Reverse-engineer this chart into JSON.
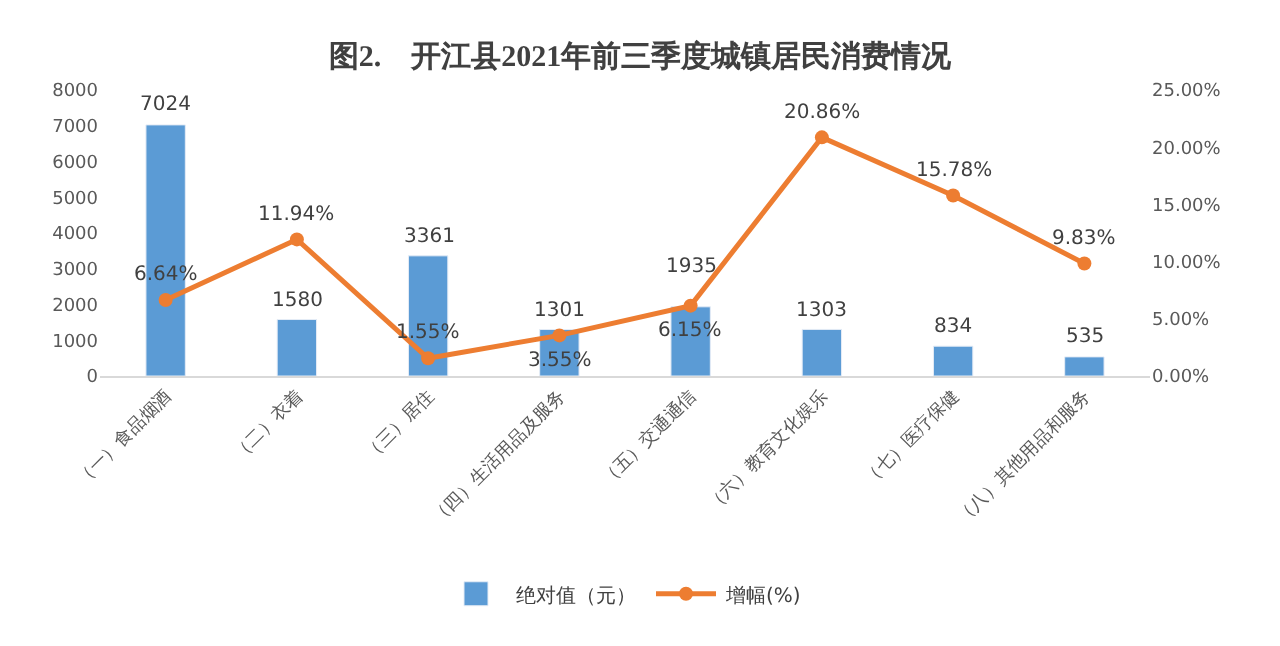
{
  "chart_data": {
    "type": "bar",
    "title": "图2.    开江县2021年前三季度城镇居民消费情况",
    "categories": [
      "（一）食品烟酒",
      "（二）衣着",
      "（三）居住",
      "（四）生活用品及服务",
      "（五）交通通信",
      "（六）教育文化娱乐",
      "（七）医疗保健",
      "（八）其他用品和服务"
    ],
    "series": [
      {
        "name": "绝对值（元）",
        "color": "#5b9bd5",
        "values": [
          7024,
          1580,
          3361,
          1301,
          1935,
          1303,
          834,
          535
        ],
        "value_labels": [
          "7024",
          "1580",
          "3361",
          "1301",
          "1935",
          "1303",
          "834",
          "535"
        ]
      },
      {
        "name": "增幅(%)",
        "type": "line",
        "axis": "y2",
        "color": "#ed7d31",
        "marker": "circle",
        "values": [
          6.64,
          11.94,
          1.55,
          3.55,
          6.15,
          20.86,
          15.78,
          9.83
        ],
        "value_labels": [
          "6.64%",
          "11.94%",
          "1.55%",
          "3.55%",
          "6.15%",
          "20.86%",
          "15.78%",
          "9.83%"
        ]
      }
    ],
    "ylim": [
      0,
      8000
    ],
    "yticks": [
      0,
      1000,
      2000,
      3000,
      4000,
      5000,
      6000,
      7000,
      8000
    ],
    "y2lim": [
      0,
      25
    ],
    "y2ticks": [
      {
        "value": 0,
        "label": "0.00%"
      },
      {
        "value": 5,
        "label": "5.00%"
      },
      {
        "value": 10,
        "label": "10.00%"
      },
      {
        "value": 15,
        "label": "15.00%"
      },
      {
        "value": 20,
        "label": "20.00%"
      },
      {
        "value": 25,
        "label": "25.00%"
      }
    ],
    "legend": "bottom"
  }
}
